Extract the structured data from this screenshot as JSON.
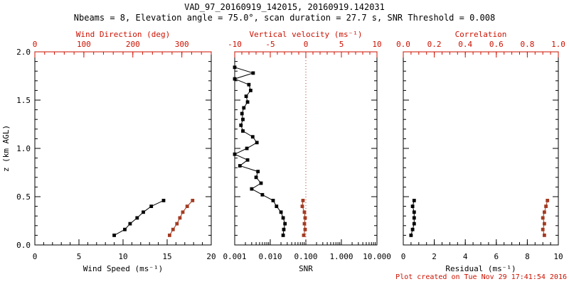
{
  "header": {
    "title": "VAD_97_20160919_142015, 20160919.142031",
    "subtitle": "Nbeams = 8, Elevation angle = 75.0°, scan duration = 27.7 s, SNR Threshold = 0.008"
  },
  "footer": {
    "created": "Plot created on Tue Nov 29 17:41:54 2016"
  },
  "colors": {
    "background": "#ffffff",
    "black": "#000000",
    "axis_red": "#cc1100",
    "marker_red": "#a33b22"
  },
  "y_axis": {
    "label": "z (km AGL)",
    "range": [
      0,
      2
    ],
    "ticks": [
      0.0,
      0.5,
      1.0,
      1.5,
      2.0
    ],
    "tick_labels": [
      "0.0",
      "0.5",
      "1.0",
      "1.5",
      "2.0"
    ],
    "minor_step": 0.1
  },
  "chart_data": [
    {
      "type": "line",
      "name": "wind",
      "bottom_axis": {
        "label": "Wind Speed (ms⁻¹)",
        "scale": "linear",
        "range": [
          0,
          20
        ],
        "ticks": [
          0,
          5,
          10,
          15,
          20
        ],
        "tick_labels": [
          "0",
          "5",
          "10",
          "15",
          "20"
        ],
        "minor_step": 1,
        "color": "black"
      },
      "top_axis": {
        "label": "Wind Direction (deg)",
        "scale": "linear",
        "range": [
          0,
          360
        ],
        "ticks": [
          0,
          100,
          200,
          300
        ],
        "tick_labels": [
          "0",
          "100",
          "200",
          "300"
        ],
        "minor_step": 20,
        "color": "red"
      },
      "series": [
        {
          "name": "wind-speed",
          "axis": "bottom",
          "color": "black",
          "heights_km": [
            0.1,
            0.16,
            0.22,
            0.28,
            0.34,
            0.4,
            0.46
          ],
          "values": [
            9.0,
            10.2,
            10.8,
            11.6,
            12.3,
            13.2,
            14.6
          ]
        },
        {
          "name": "wind-direction",
          "axis": "top",
          "color": "red",
          "heights_km": [
            0.1,
            0.16,
            0.22,
            0.28,
            0.34,
            0.4,
            0.46
          ],
          "values": [
            275,
            282,
            290,
            296,
            302,
            311,
            322
          ]
        }
      ]
    },
    {
      "type": "line",
      "name": "snr",
      "bottom_axis": {
        "label": "SNR",
        "scale": "log",
        "range": [
          0.001,
          10
        ],
        "ticks": [
          0.001,
          0.01,
          0.1,
          1,
          10
        ],
        "tick_labels": [
          "0.001",
          "0.010",
          "0.100",
          "1.000",
          "10.000"
        ],
        "color": "black"
      },
      "top_axis": {
        "label": "Vertical velocity (ms⁻¹)",
        "scale": "linear",
        "range": [
          -10,
          10
        ],
        "ticks": [
          -10,
          -5,
          0,
          5,
          10
        ],
        "tick_labels": [
          "-10",
          "-5",
          "0",
          "5",
          "10"
        ],
        "minor_step": 1,
        "color": "red"
      },
      "zero_line": {
        "axis": "top",
        "value": 0,
        "color": "red",
        "style": "dotted"
      },
      "series": [
        {
          "name": "snr",
          "axis": "bottom",
          "color": "black",
          "heights_km": [
            0.1,
            0.16,
            0.22,
            0.28,
            0.34,
            0.4,
            0.46,
            0.52,
            0.58,
            0.64,
            0.7,
            0.76,
            0.82,
            0.88,
            0.94,
            1.0,
            1.06,
            1.12,
            1.18,
            1.24,
            1.3,
            1.36,
            1.42,
            1.48,
            1.54,
            1.6,
            1.66,
            1.72,
            1.78,
            1.84
          ],
          "values": [
            0.023,
            0.024,
            0.026,
            0.023,
            0.02,
            0.015,
            0.012,
            0.006,
            0.003,
            0.0055,
            0.004,
            0.0045,
            0.0014,
            0.0023,
            0.001,
            0.0022,
            0.0042,
            0.0032,
            0.0017,
            0.0015,
            0.0017,
            0.0016,
            0.0018,
            0.0023,
            0.0021,
            0.0028,
            0.0025,
            0.001,
            0.0033,
            0.001
          ]
        },
        {
          "name": "vertical-velocity",
          "axis": "top",
          "color": "red",
          "heights_km": [
            0.1,
            0.16,
            0.22,
            0.28,
            0.34,
            0.4,
            0.46
          ],
          "values": [
            -0.3,
            -0.1,
            -0.2,
            -0.1,
            -0.2,
            -0.5,
            -0.4
          ]
        }
      ]
    },
    {
      "type": "line",
      "name": "residual",
      "bottom_axis": {
        "label": "Residual (ms⁻¹)",
        "scale": "linear",
        "range": [
          0,
          10
        ],
        "ticks": [
          0,
          2,
          4,
          6,
          8,
          10
        ],
        "tick_labels": [
          "0",
          "2",
          "4",
          "6",
          "8",
          "10"
        ],
        "minor_step": 0.5,
        "color": "black"
      },
      "top_axis": {
        "label": "Correlation",
        "scale": "linear",
        "range": [
          0,
          1
        ],
        "ticks": [
          0.0,
          0.2,
          0.4,
          0.6,
          0.8,
          1.0
        ],
        "tick_labels": [
          "0.0",
          "0.2",
          "0.4",
          "0.6",
          "0.8",
          "1.0"
        ],
        "minor_step": 0.05,
        "color": "red"
      },
      "series": [
        {
          "name": "residual",
          "axis": "bottom",
          "color": "black",
          "heights_km": [
            0.1,
            0.16,
            0.22,
            0.28,
            0.34,
            0.4,
            0.46
          ],
          "values": [
            0.5,
            0.6,
            0.7,
            0.7,
            0.7,
            0.6,
            0.7
          ]
        },
        {
          "name": "correlation",
          "axis": "top",
          "color": "red",
          "heights_km": [
            0.1,
            0.16,
            0.22,
            0.28,
            0.34,
            0.4,
            0.46
          ],
          "values": [
            0.91,
            0.9,
            0.91,
            0.9,
            0.91,
            0.92,
            0.93
          ]
        }
      ]
    }
  ]
}
